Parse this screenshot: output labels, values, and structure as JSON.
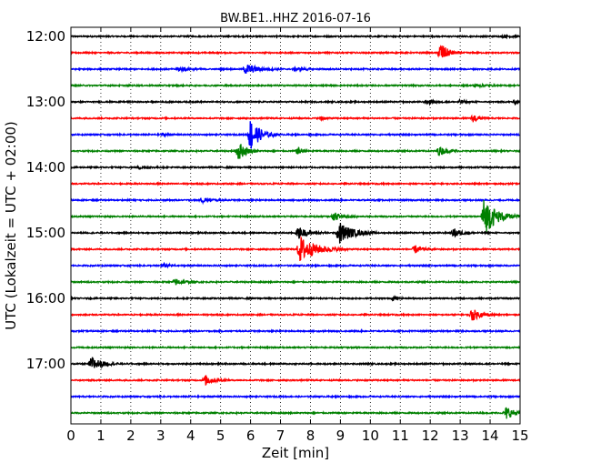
{
  "chart_data": {
    "type": "line",
    "title": "BW.BE1..HHZ 2016-07-16",
    "xlabel": "Zeit  [min]",
    "ylabel": "UTC (Lokalzeit = UTC + 02:00)",
    "xlim": [
      0,
      15
    ],
    "x_ticks": [
      "0",
      "1",
      "2",
      "3",
      "4",
      "5",
      "6",
      "7",
      "8",
      "9",
      "10",
      "11",
      "12",
      "13",
      "14",
      "15"
    ],
    "y_ticks": [
      "12:00",
      "13:00",
      "14:00",
      "15:00",
      "16:00",
      "17:00"
    ],
    "grid": true,
    "trace_interval_min": 15,
    "trace_colors": [
      "#000000",
      "#ff0000",
      "#0000ff",
      "#008000"
    ],
    "traces": [
      {
        "start": "12:00",
        "events": [
          [
            14.5,
            0.9,
            0.3
          ]
        ]
      },
      {
        "start": "12:15",
        "events": [
          [
            12.35,
            0.7,
            2.6
          ]
        ]
      },
      {
        "start": "12:30",
        "events": [
          [
            3.6,
            0.8,
            0.6
          ],
          [
            5.85,
            1.2,
            1.4
          ],
          [
            7.5,
            0.8,
            0.4
          ]
        ]
      },
      {
        "start": "12:45",
        "events": [
          [
            13.5,
            0.9,
            0.4
          ]
        ]
      },
      {
        "start": "13:00",
        "events": [
          [
            11.9,
            0.7,
            0.6
          ],
          [
            13.0,
            0.6,
            0.5
          ],
          [
            14.85,
            0.3,
            0.6
          ]
        ]
      },
      {
        "start": "13:15",
        "events": [
          [
            8.4,
            0.3,
            0.6
          ],
          [
            13.45,
            0.5,
            1.1
          ]
        ]
      },
      {
        "start": "13:30",
        "events": [
          [
            6.0,
            0.9,
            4.4
          ],
          [
            3.1,
            0.3,
            0.4
          ]
        ]
      },
      {
        "start": "13:45",
        "events": [
          [
            5.6,
            0.7,
            2.6
          ],
          [
            7.6,
            0.5,
            0.9
          ],
          [
            12.3,
            0.7,
            1.2
          ]
        ]
      },
      {
        "start": "14:00",
        "events": [
          [
            2.3,
            0.8,
            0.4
          ]
        ]
      },
      {
        "start": "14:15",
        "events": []
      },
      {
        "start": "14:30",
        "events": [
          [
            4.4,
            0.9,
            0.6
          ]
        ]
      },
      {
        "start": "14:45",
        "events": [
          [
            8.8,
            0.8,
            1.0
          ],
          [
            13.8,
            1.2,
            5.0
          ]
        ]
      },
      {
        "start": "15:00",
        "events": [
          [
            7.6,
            1.0,
            1.4
          ],
          [
            8.95,
            1.3,
            3.0
          ],
          [
            12.8,
            0.8,
            1.1
          ]
        ]
      },
      {
        "start": "15:15",
        "events": [
          [
            7.65,
            1.6,
            3.4
          ],
          [
            11.5,
            0.7,
            1.0
          ]
        ]
      },
      {
        "start": "15:30",
        "events": [
          [
            3.1,
            0.7,
            0.5
          ]
        ]
      },
      {
        "start": "15:45",
        "events": [
          [
            3.5,
            0.9,
            0.8
          ]
        ]
      },
      {
        "start": "16:00",
        "events": [
          [
            10.8,
            0.3,
            0.6
          ]
        ]
      },
      {
        "start": "16:15",
        "events": [
          [
            13.4,
            0.8,
            1.6
          ]
        ]
      },
      {
        "start": "16:30",
        "events": []
      },
      {
        "start": "16:45",
        "events": []
      },
      {
        "start": "17:00",
        "events": [
          [
            0.7,
            0.9,
            2.0
          ]
        ]
      },
      {
        "start": "17:15",
        "events": [
          [
            4.5,
            0.8,
            1.3
          ]
        ]
      },
      {
        "start": "17:30",
        "events": []
      },
      {
        "start": "17:45",
        "events": [
          [
            14.55,
            0.7,
            1.7
          ]
        ]
      }
    ]
  }
}
